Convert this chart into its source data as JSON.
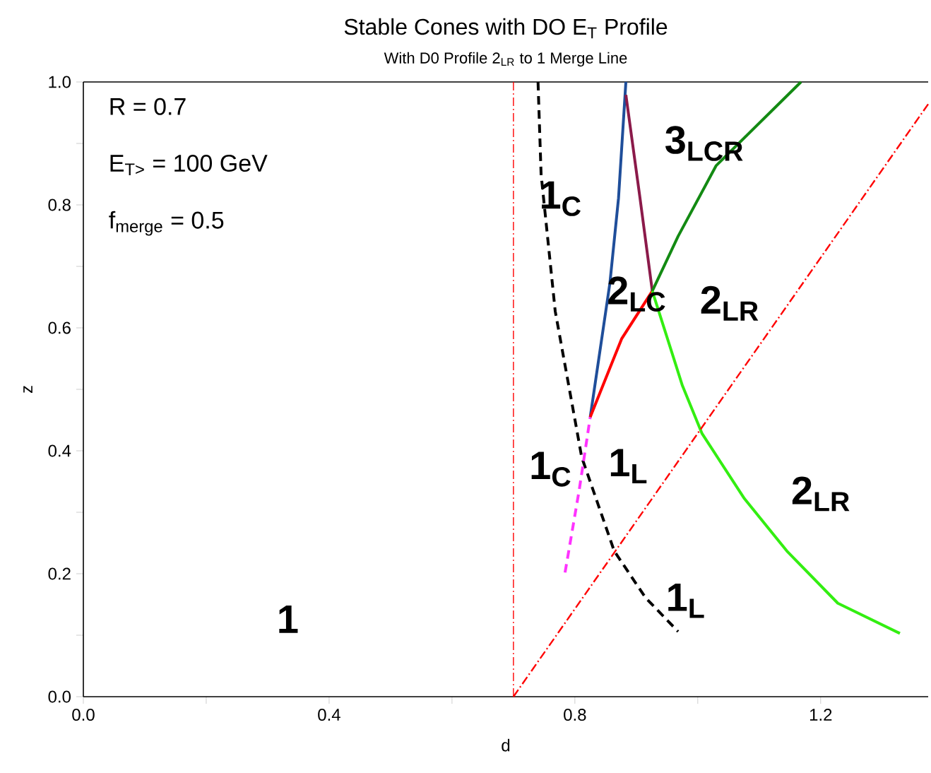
{
  "chart_data": {
    "type": "line",
    "title": "Stable Cones with DO E$_{T}$ Profile",
    "subtitle": "With D0 Profile 2$_{LR}$ to 1 Merge Line",
    "xlabel": "d",
    "ylabel": "z",
    "xlim": [
      0,
      1.375
    ],
    "ylim": [
      0,
      1.0
    ],
    "xticks": [
      {
        "value": 0,
        "label": "0.0"
      },
      {
        "value": 0.2,
        "label": null
      },
      {
        "value": 0.4,
        "label": "0.4"
      },
      {
        "value": 0.6,
        "label": null
      },
      {
        "value": 0.8,
        "label": "0.8"
      },
      {
        "value": 1.0,
        "label": null
      },
      {
        "value": 1.2,
        "label": "1.2"
      }
    ],
    "yticks": [
      {
        "value": 0,
        "label": "0.0"
      },
      {
        "value": 0.1,
        "label": null
      },
      {
        "value": 0.2,
        "label": "0.2"
      },
      {
        "value": 0.3,
        "label": null
      },
      {
        "value": 0.4,
        "label": "0.4"
      },
      {
        "value": 0.5,
        "label": null
      },
      {
        "value": 0.6,
        "label": "0.6"
      },
      {
        "value": 0.7,
        "label": null
      },
      {
        "value": 0.8,
        "label": "0.8"
      },
      {
        "value": 0.9,
        "label": null
      },
      {
        "value": 1.0,
        "label": "1.0"
      }
    ],
    "series": [
      {
        "color": "#000000",
        "line_style": "dashed",
        "x": [
          0.74,
          0.745,
          0.768,
          0.802,
          0.811,
          0.864,
          0.915,
          0.968
        ],
        "values": [
          1.0,
          0.85,
          0.627,
          0.44,
          0.39,
          0.237,
          0.161,
          0.106
        ]
      },
      {
        "color": "#ff33ff",
        "line_style": "dashed",
        "x": [
          0.784,
          0.807,
          0.825
        ],
        "values": [
          0.202,
          0.336,
          0.455
        ]
      },
      {
        "color": "#1f4e9a",
        "line_style": "solid",
        "x": [
          0.825,
          0.857,
          0.871,
          0.883
        ],
        "values": [
          0.455,
          0.673,
          0.811,
          1.0
        ]
      },
      {
        "color": "#ff0000",
        "line_style": "solid",
        "x": [
          0.825,
          0.876,
          0.926
        ],
        "values": [
          0.455,
          0.582,
          0.66
        ]
      },
      {
        "color": "#8b1a4a",
        "line_style": "solid",
        "x": [
          0.883,
          0.906,
          0.926
        ],
        "values": [
          0.979,
          0.811,
          0.66
        ]
      },
      {
        "color": "#138a13",
        "line_style": "solid",
        "x": [
          0.926,
          0.968,
          1.03,
          1.168
        ],
        "values": [
          0.66,
          0.749,
          0.864,
          1.0
        ]
      },
      {
        "color": "#33ee11",
        "line_style": "solid",
        "x": [
          0.926,
          0.975,
          1.007,
          1.076,
          1.145,
          1.228,
          1.329
        ],
        "values": [
          0.66,
          0.506,
          0.428,
          0.322,
          0.237,
          0.152,
          0.103
        ]
      },
      {
        "color": "#ff0000",
        "line_style": "dashdot",
        "x": [
          0.7,
          1.375
        ],
        "values": [
          0,
          0.964
        ]
      }
    ],
    "ref_lines": [
      {
        "axis": "x",
        "value": 0.7,
        "color": "#ff0000",
        "line_style": "dashdot"
      }
    ],
    "annotations": [
      "R = 0.7",
      "E$_{T>}$ = 100 GeV",
      "f$_{merge}$ = 0.5",
      "1",
      "1$_{C}$",
      "2$_{LC}$",
      "3$_{LCR}$",
      "2$_{LR}$",
      "1$_{C}$",
      "1$_{L}$",
      "2$_{LR}$",
      "1$_{L}$"
    ]
  }
}
